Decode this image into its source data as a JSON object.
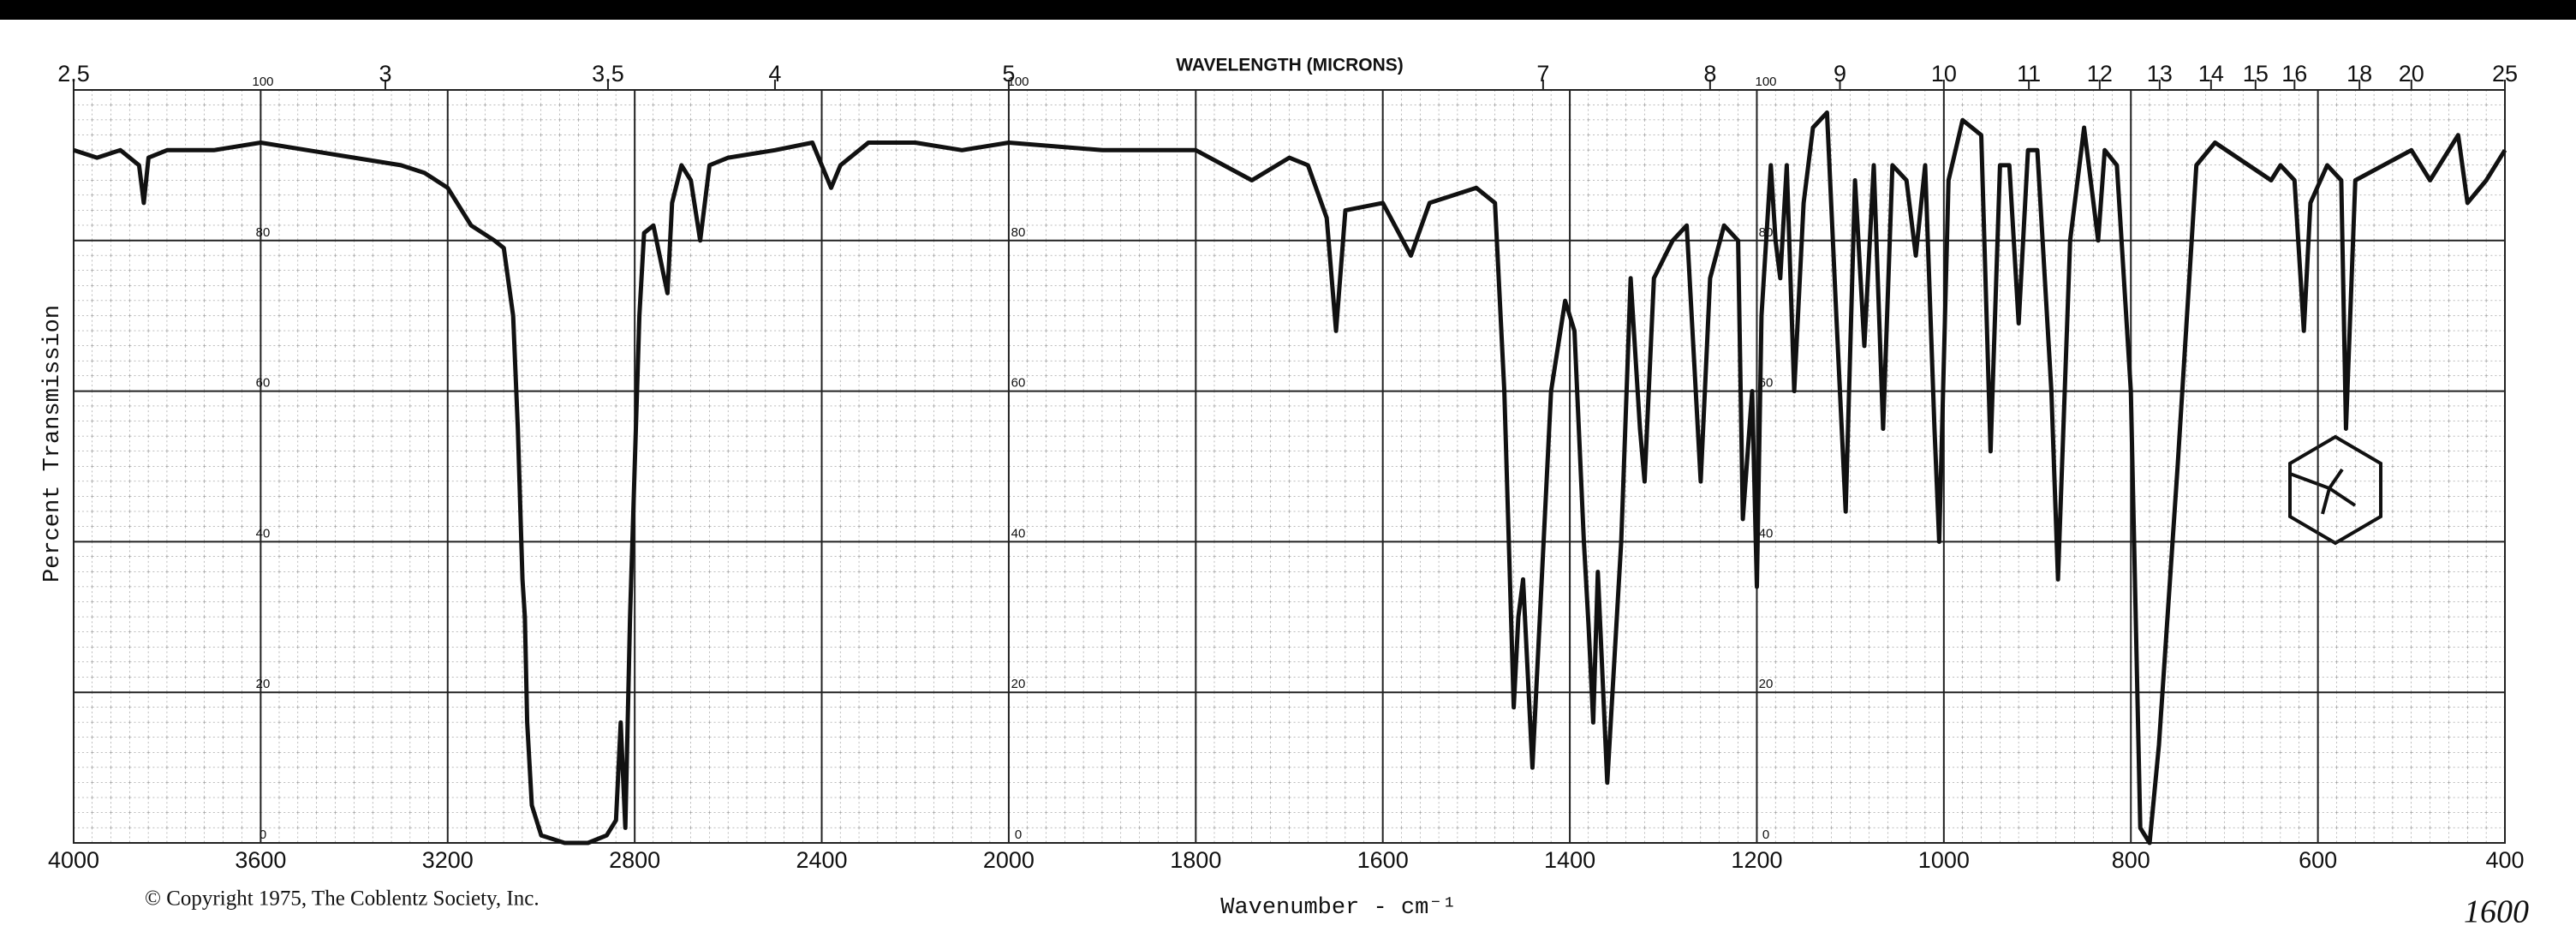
{
  "chart_data": {
    "type": "line",
    "top_axis": {
      "label": "WAVELENGTH (MICRONS)",
      "ticks": [
        2.5,
        3,
        3.5,
        4,
        5,
        7,
        8,
        9,
        10,
        11,
        12,
        13,
        14,
        15,
        16,
        18,
        20,
        25
      ]
    },
    "y_label": "Percent Transmission",
    "x_label": "Wavenumber - cm⁻¹",
    "footer": "© Copyright 1975, The Coblentz Society, Inc.",
    "annotation": "1600",
    "xlim": [
      4000,
      400
    ],
    "xticks": [
      4000,
      3600,
      3200,
      2800,
      2400,
      2000,
      1800,
      1600,
      1400,
      1200,
      1000,
      800,
      600,
      400
    ],
    "ylim": [
      0,
      100
    ],
    "yticks": [
      0,
      20,
      40,
      60,
      80,
      100
    ],
    "grid": true,
    "x": [
      4000,
      3950,
      3900,
      3860,
      3850,
      3840,
      3800,
      3700,
      3600,
      3500,
      3400,
      3300,
      3250,
      3200,
      3150,
      3100,
      3080,
      3060,
      3050,
      3040,
      3035,
      3030,
      3020,
      3000,
      2950,
      2900,
      2860,
      2840,
      2830,
      2820,
      2810,
      2790,
      2780,
      2760,
      2740,
      2730,
      2720,
      2700,
      2680,
      2660,
      2640,
      2600,
      2500,
      2420,
      2380,
      2360,
      2300,
      2200,
      2100,
      2000,
      1900,
      1800,
      1740,
      1700,
      1680,
      1660,
      1650,
      1640,
      1600,
      1570,
      1550,
      1500,
      1480,
      1470,
      1460,
      1455,
      1450,
      1440,
      1420,
      1405,
      1395,
      1385,
      1380,
      1375,
      1370,
      1360,
      1345,
      1335,
      1325,
      1320,
      1310,
      1290,
      1275,
      1260,
      1250,
      1235,
      1220,
      1215,
      1205,
      1200,
      1195,
      1185,
      1180,
      1175,
      1168,
      1160,
      1150,
      1140,
      1125,
      1115,
      1105,
      1095,
      1085,
      1075,
      1065,
      1055,
      1040,
      1030,
      1020,
      1010,
      1005,
      995,
      980,
      960,
      950,
      940,
      930,
      920,
      910,
      900,
      885,
      878,
      865,
      850,
      835,
      828,
      815,
      800,
      790,
      780,
      770,
      750,
      730,
      710,
      650,
      640,
      625,
      615,
      608,
      590,
      575,
      570,
      560,
      530,
      500,
      480,
      450,
      440,
      420,
      400
    ],
    "series": [
      {
        "color": "#111111",
        "values": [
          92,
          91,
          92,
          90,
          85,
          91,
          92,
          92,
          93,
          92,
          91,
          90,
          89,
          87,
          82,
          80,
          79,
          70,
          55,
          35,
          30,
          16,
          5,
          1,
          0,
          0,
          1,
          3,
          16,
          2,
          30,
          70,
          81,
          82,
          76,
          73,
          85,
          90,
          88,
          80,
          90,
          91,
          92,
          93,
          87,
          90,
          93,
          93,
          92,
          93,
          92,
          92,
          88,
          91,
          90,
          83,
          68,
          84,
          85,
          78,
          85,
          87,
          85,
          60,
          18,
          30,
          35,
          10,
          60,
          72,
          68,
          40,
          29,
          16,
          36,
          8,
          40,
          75,
          55,
          48,
          75,
          80,
          82,
          48,
          75,
          82,
          80,
          43,
          60,
          34,
          70,
          90,
          80,
          75,
          90,
          60,
          85,
          95,
          97,
          70,
          44,
          88,
          66,
          90,
          55,
          90,
          88,
          78,
          90,
          55,
          40,
          88,
          96,
          94,
          52,
          90,
          90,
          69,
          92,
          92,
          60,
          35,
          80,
          95,
          80,
          92,
          90,
          60,
          2,
          0,
          13,
          50,
          90,
          93,
          88,
          90,
          88,
          68,
          85,
          90,
          88,
          55,
          88,
          90,
          92,
          88,
          94,
          85,
          88,
          92
        ]
      }
    ]
  }
}
